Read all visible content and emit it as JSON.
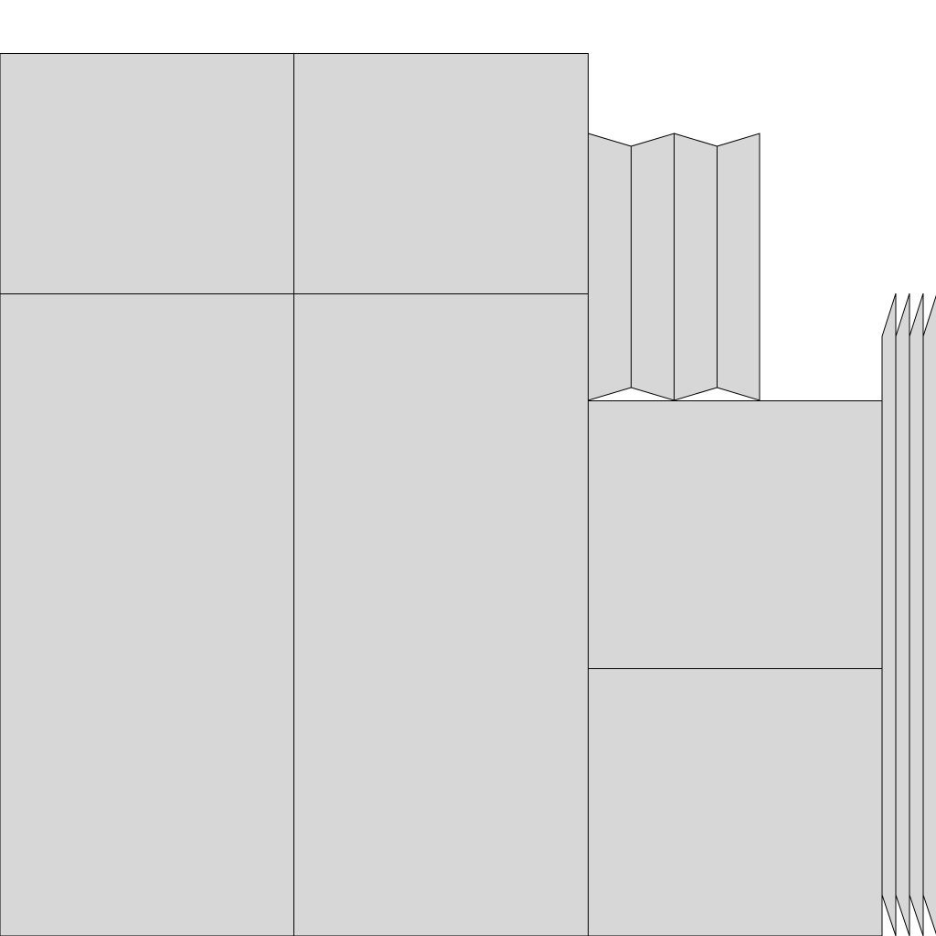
{
  "colors": {
    "background": "#ffffff",
    "panel_fill": "#d7d7d7",
    "stroke": "#000000"
  },
  "layout_groups": [
    {
      "name": "large-panel-grid",
      "panels": 4
    },
    {
      "name": "accordion-fold",
      "panels": 4
    },
    {
      "name": "stacked-panels",
      "panels": 2
    },
    {
      "name": "slanted-strips",
      "panels": 4
    }
  ]
}
